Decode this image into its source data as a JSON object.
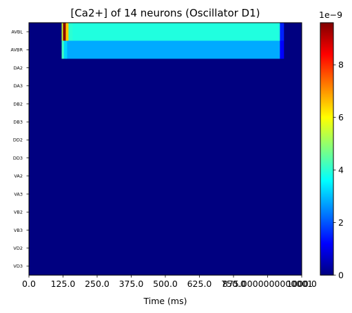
{
  "chart_data": {
    "type": "heatmap",
    "title": "[Ca2+] of 14 neurons (Oscillator D1)",
    "xlabel": "Time (ms)",
    "ylabel": "",
    "xlim": [
      0,
      1000
    ],
    "x_ticks": [
      "0.0",
      "125.0",
      "250.0",
      "375.0",
      "500.0",
      "625.0",
      "750.0",
      "875.0000000000001",
      "1000.0"
    ],
    "x_tick_values": [
      0,
      125,
      250,
      375,
      500,
      625,
      750,
      875,
      1000
    ],
    "rows": [
      "AVBL",
      "AVBR",
      "DA2",
      "DA3",
      "DB2",
      "DB3",
      "DD2",
      "DD3",
      "VA2",
      "VA3",
      "VB2",
      "VB3",
      "VD2",
      "VD3"
    ],
    "colormap": "jet",
    "colorbar": {
      "min": 0,
      "max": 9.6e-09,
      "ticks": [
        "0",
        "2",
        "4",
        "6",
        "8"
      ],
      "tick_values": [
        0,
        2e-09,
        4e-09,
        6e-09,
        8e-09
      ],
      "exponent_label": "1e−9"
    },
    "series": [
      {
        "name": "AVBL",
        "segments": [
          {
            "t_start": 0,
            "t_end": 120,
            "value": 0
          },
          {
            "t_start": 120,
            "t_end": 125,
            "value": 5.5e-09
          },
          {
            "t_start": 125,
            "t_end": 135,
            "value": 9.5e-09
          },
          {
            "t_start": 135,
            "t_end": 145,
            "value": 6.5e-09
          },
          {
            "t_start": 145,
            "t_end": 160,
            "value": 4e-09
          },
          {
            "t_start": 160,
            "t_end": 920,
            "value": 3.9e-09
          },
          {
            "t_start": 920,
            "t_end": 935,
            "value": 1.5e-09
          },
          {
            "t_start": 935,
            "t_end": 1000,
            "value": 0
          }
        ]
      },
      {
        "name": "AVBR",
        "segments": [
          {
            "t_start": 0,
            "t_end": 120,
            "value": 0
          },
          {
            "t_start": 120,
            "t_end": 128,
            "value": 4.2e-09
          },
          {
            "t_start": 128,
            "t_end": 140,
            "value": 3.2e-09
          },
          {
            "t_start": 140,
            "t_end": 920,
            "value": 2.8e-09
          },
          {
            "t_start": 920,
            "t_end": 935,
            "value": 1.2e-09
          },
          {
            "t_start": 935,
            "t_end": 1000,
            "value": 0
          }
        ]
      },
      {
        "name": "DA2",
        "segments": [
          {
            "t_start": 0,
            "t_end": 1000,
            "value": 0
          }
        ]
      },
      {
        "name": "DA3",
        "segments": [
          {
            "t_start": 0,
            "t_end": 1000,
            "value": 0
          }
        ]
      },
      {
        "name": "DB2",
        "segments": [
          {
            "t_start": 0,
            "t_end": 1000,
            "value": 0
          }
        ]
      },
      {
        "name": "DB3",
        "segments": [
          {
            "t_start": 0,
            "t_end": 1000,
            "value": 0
          }
        ]
      },
      {
        "name": "DD2",
        "segments": [
          {
            "t_start": 0,
            "t_end": 1000,
            "value": 0
          }
        ]
      },
      {
        "name": "DD3",
        "segments": [
          {
            "t_start": 0,
            "t_end": 1000,
            "value": 0
          }
        ]
      },
      {
        "name": "VA2",
        "segments": [
          {
            "t_start": 0,
            "t_end": 1000,
            "value": 0
          }
        ]
      },
      {
        "name": "VA3",
        "segments": [
          {
            "t_start": 0,
            "t_end": 1000,
            "value": 0
          }
        ]
      },
      {
        "name": "VB2",
        "segments": [
          {
            "t_start": 0,
            "t_end": 1000,
            "value": 0
          }
        ]
      },
      {
        "name": "VB3",
        "segments": [
          {
            "t_start": 0,
            "t_end": 1000,
            "value": 0
          }
        ]
      },
      {
        "name": "VD2",
        "segments": [
          {
            "t_start": 0,
            "t_end": 1000,
            "value": 0
          }
        ]
      },
      {
        "name": "VD3",
        "segments": [
          {
            "t_start": 0,
            "t_end": 1000,
            "value": 0
          }
        ]
      }
    ]
  }
}
